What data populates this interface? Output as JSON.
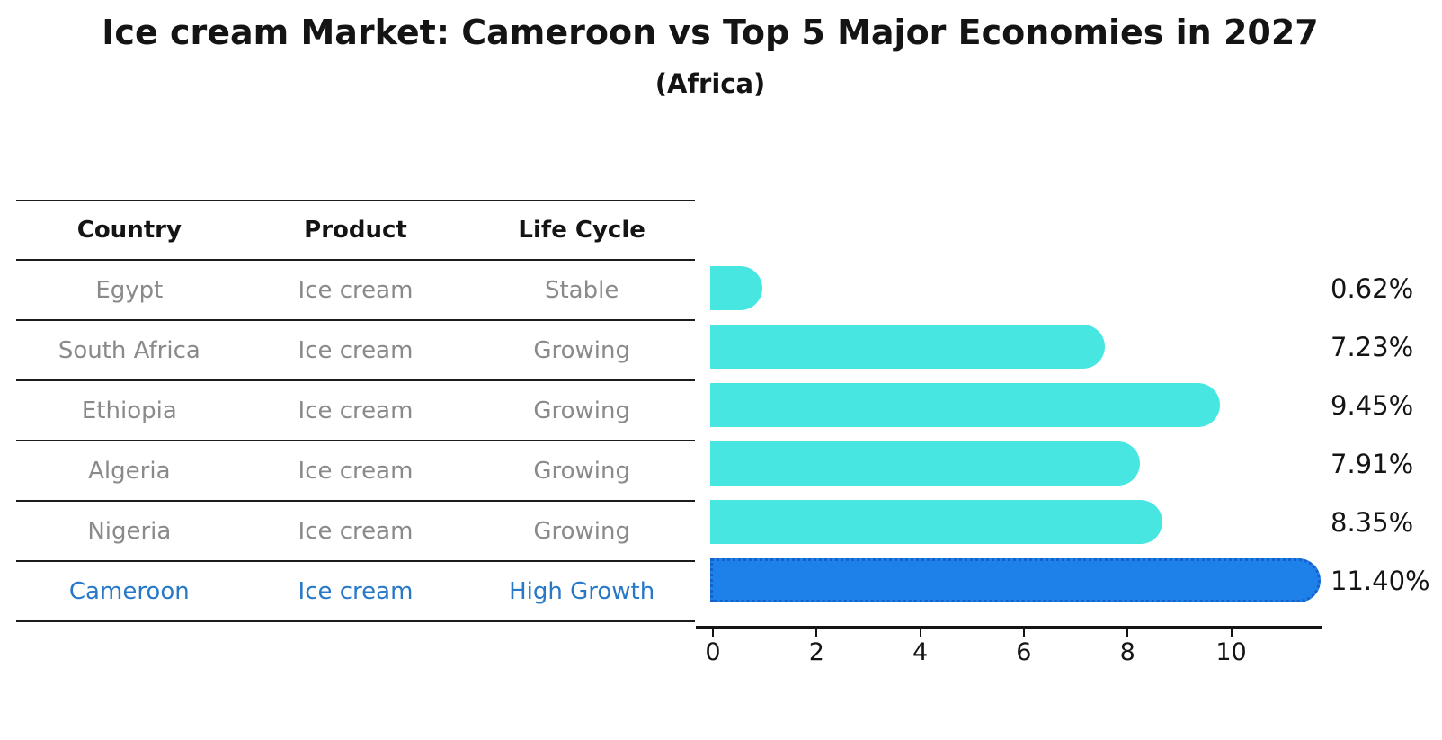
{
  "title": "Ice cream Market: Cameroon vs Top 5 Major Economies in 2027",
  "subtitle": "(Africa)",
  "table": {
    "headers": [
      "Country",
      "Product",
      "Life Cycle"
    ],
    "rows": [
      {
        "country": "Egypt",
        "product": "Ice cream",
        "life_cycle": "Stable",
        "highlight": false
      },
      {
        "country": "South Africa",
        "product": "Ice cream",
        "life_cycle": "Growing",
        "highlight": false
      },
      {
        "country": "Ethiopia",
        "product": "Ice cream",
        "life_cycle": "Growing",
        "highlight": false
      },
      {
        "country": "Algeria",
        "product": "Ice cream",
        "life_cycle": "Growing",
        "highlight": false
      },
      {
        "country": "Nigeria",
        "product": "Ice cream",
        "life_cycle": "Growing",
        "highlight": false
      },
      {
        "country": "Cameroon",
        "product": "Ice cream",
        "life_cycle": "High Growth",
        "highlight": true
      }
    ]
  },
  "chart_data": {
    "type": "bar",
    "orientation": "horizontal",
    "title": "Ice cream Market: Cameroon vs Top 5 Major Economies in 2027",
    "subtitle": "(Africa)",
    "categories": [
      "Egypt",
      "South Africa",
      "Ethiopia",
      "Algeria",
      "Nigeria",
      "Cameroon"
    ],
    "values": [
      0.62,
      7.23,
      9.45,
      7.91,
      8.35,
      11.4
    ],
    "value_labels": [
      "0.62%",
      "7.23%",
      "9.45%",
      "7.91%",
      "8.35%",
      "11.40%"
    ],
    "x_ticks": [
      0,
      2,
      4,
      6,
      8,
      10
    ],
    "xlim": [
      0,
      11.8
    ],
    "grid": false,
    "legend": "none",
    "bar_color": "#47E6E1",
    "highlight_color": "#1E80E9",
    "highlight_index": 5
  },
  "colors": {
    "bar_turquoise": "#47E6E1",
    "bar_blue": "#1E80E9",
    "bar_blue_dotted_edge": "#1461C9",
    "highlight_text": "#2878C8",
    "muted_text": "#8A8A8A",
    "text": "#141414",
    "background": "#FFFFFF"
  }
}
